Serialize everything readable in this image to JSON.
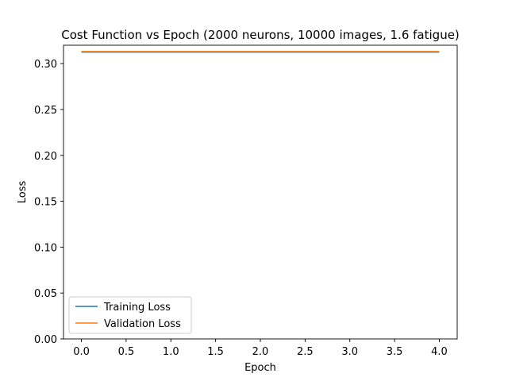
{
  "chart_data": {
    "type": "line",
    "title": "Cost Function vs Epoch (2000 neurons, 10000 images, 1.6 fatigue)",
    "xlabel": "Epoch",
    "ylabel": "Loss",
    "x": [
      0,
      1,
      2,
      3,
      4
    ],
    "xlim": [
      -0.2,
      4.2
    ],
    "ylim": [
      0.0,
      0.32
    ],
    "xticks": [
      0.0,
      0.5,
      1.0,
      1.5,
      2.0,
      2.5,
      3.0,
      3.5,
      4.0
    ],
    "xtick_labels": [
      "0.0",
      "0.5",
      "1.0",
      "1.5",
      "2.0",
      "2.5",
      "3.0",
      "3.5",
      "4.0"
    ],
    "yticks": [
      0.0,
      0.05,
      0.1,
      0.15,
      0.2,
      0.25,
      0.3
    ],
    "ytick_labels": [
      "0.00",
      "0.05",
      "0.10",
      "0.15",
      "0.20",
      "0.25",
      "0.30"
    ],
    "grid": false,
    "legend_position": "lower-left",
    "series": [
      {
        "name": "Training Loss",
        "color": "#1f77b4",
        "values": [
          0.3126,
          0.3126,
          0.3126,
          0.3126,
          0.3126
        ]
      },
      {
        "name": "Validation Loss",
        "color": "#ff7f0e",
        "values": [
          0.3132,
          0.3132,
          0.3132,
          0.3132,
          0.3132
        ]
      }
    ]
  }
}
